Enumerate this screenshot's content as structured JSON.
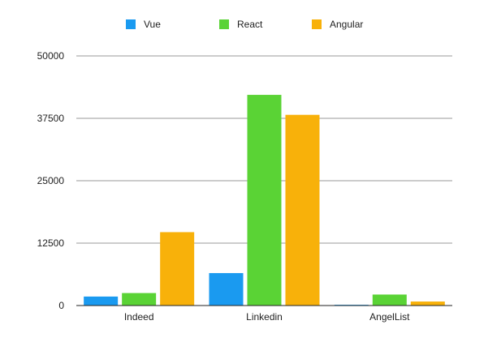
{
  "chart_data": {
    "type": "bar",
    "categories": [
      "Indeed",
      "Linkedin",
      "AngelList"
    ],
    "series": [
      {
        "name": "Vue",
        "values": [
          1800,
          6500,
          150
        ],
        "color": "#1a9af0"
      },
      {
        "name": "React",
        "values": [
          2500,
          42200,
          2200
        ],
        "color": "#5ad335"
      },
      {
        "name": "Angular",
        "values": [
          14700,
          38200,
          800
        ],
        "color": "#f8b10a"
      }
    ],
    "ylim": [
      0,
      50000
    ],
    "yticks": [
      "0",
      "12500",
      "25000",
      "37500",
      "50000"
    ],
    "grid": true,
    "legend": "top-center",
    "title": "",
    "xlabel": "",
    "ylabel": ""
  }
}
